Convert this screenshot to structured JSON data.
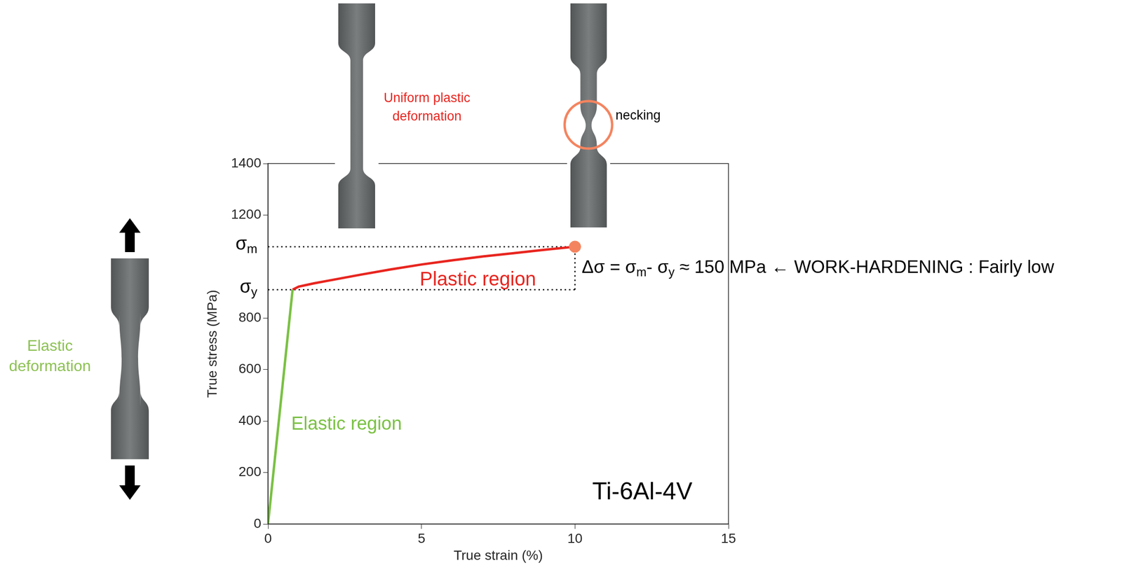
{
  "chart_data": {
    "type": "line",
    "title": "Ti-6Al-4V",
    "xlabel": "True strain (%)",
    "ylabel": "True stress (MPa)",
    "xlim": [
      0,
      15
    ],
    "xticks": [
      0,
      5,
      10,
      15
    ],
    "ylim": [
      0,
      1400
    ],
    "yticks": [
      0,
      200,
      400,
      600,
      800,
      1200,
      1400
    ],
    "grid": false,
    "series": [
      {
        "name": "Elastic region",
        "color": "#7ac143",
        "x": [
          0,
          0.8
        ],
        "values": [
          0,
          910
        ]
      },
      {
        "name": "Plastic region",
        "color": "#e8251f",
        "x": [
          0.8,
          1,
          1.5,
          2,
          3,
          4,
          5,
          6,
          7,
          8,
          9,
          10
        ],
        "values": [
          910,
          922,
          935,
          946,
          968,
          989,
          1008,
          1024,
          1039,
          1052,
          1065,
          1077
        ]
      }
    ],
    "max_point": {
      "x": 10,
      "y": 1077,
      "color": "#f4845f",
      "marker": "circle"
    },
    "sigma_m": {
      "value": 1077,
      "line_style": "dotted",
      "label": [
        {
          "text": "σ"
        },
        {
          "text": "m",
          "sub": true
        }
      ]
    },
    "sigma_y": {
      "value": 910,
      "line_style": "dotted",
      "label": [
        {
          "text": "σ"
        },
        {
          "text": "y",
          "sub": true
        }
      ]
    },
    "work_hardening_note": [
      {
        "text": "Δσ = σ"
      },
      {
        "text": "m",
        "sub": true
      },
      {
        "text": "- σ"
      },
      {
        "text": "y",
        "sub": true
      },
      {
        "text": " ≈ 150 MPa ← WORK-HARDENING : Fairly low"
      }
    ],
    "specimen_labels": {
      "elastic": "Elastic deformation",
      "uniform": "Uniform plastic deformation",
      "necking": "necking"
    }
  }
}
